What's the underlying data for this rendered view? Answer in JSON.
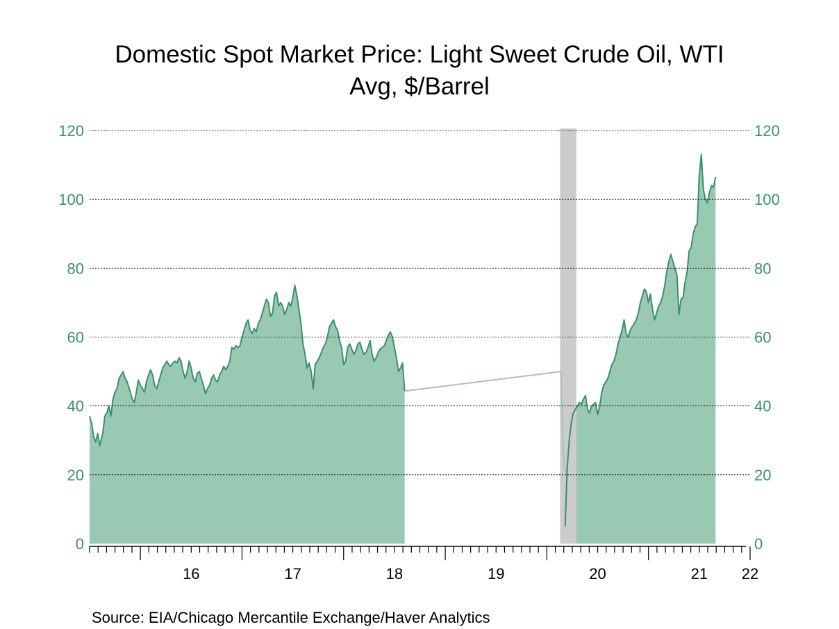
{
  "colors": {
    "fill": "#9ac9b3",
    "line": "#3a9068",
    "axis_text": "#3a9068",
    "recession_band": "#cccccc",
    "recession_line": "#a9c2b7",
    "grid": "#000000"
  },
  "chart_data": {
    "type": "area",
    "title": "Domestic Spot Market Price: Light Sweet Crude Oil, WTI",
    "subtitle": "Avg, $/Barrel",
    "source": "Source:  EIA/Chicago Mercantile Exchange/Haver Analytics",
    "xlabel": "",
    "ylabel": "",
    "x_tick_labels": [
      "16",
      "17",
      "18",
      "19",
      "20",
      "21",
      "22"
    ],
    "x_tick_years": [
      2016,
      2017,
      2018,
      2019,
      2020,
      2021,
      2022
    ],
    "xlim": [
      2015.5,
      2022.0
    ],
    "ylim": [
      0,
      120
    ],
    "y_ticks": [
      0,
      20,
      40,
      60,
      80,
      100,
      120
    ],
    "grid": "horizontal dotted",
    "y_axis": "both sides",
    "recession_shading": {
      "start": 2020.13,
      "end": 2020.29
    },
    "series": [
      {
        "points": [
          [
            2015.5,
            37
          ],
          [
            2015.52,
            35
          ],
          [
            2015.54,
            31
          ],
          [
            2015.56,
            29.5
          ],
          [
            2015.58,
            32
          ],
          [
            2015.6,
            28.5
          ],
          [
            2015.63,
            32
          ],
          [
            2015.65,
            37
          ],
          [
            2015.67,
            38
          ],
          [
            2015.69,
            40
          ],
          [
            2015.71,
            37
          ],
          [
            2015.73,
            42
          ],
          [
            2015.75,
            44
          ],
          [
            2015.77,
            45
          ],
          [
            2015.79,
            48
          ],
          [
            2015.81,
            49
          ],
          [
            2015.83,
            50
          ],
          [
            2015.85,
            48
          ],
          [
            2015.87,
            47
          ],
          [
            2015.89,
            45
          ],
          [
            2015.92,
            42
          ],
          [
            2015.94,
            41
          ],
          [
            2015.96,
            44
          ],
          [
            2015.98,
            47.5
          ],
          [
            2016.0,
            46
          ],
          [
            2016.02,
            45
          ],
          [
            2016.04,
            44
          ],
          [
            2016.06,
            47
          ],
          [
            2016.08,
            49
          ],
          [
            2016.1,
            50.5
          ],
          [
            2016.12,
            49
          ],
          [
            2016.14,
            46
          ],
          [
            2016.16,
            45
          ],
          [
            2016.18,
            47
          ],
          [
            2016.2,
            49
          ],
          [
            2016.22,
            51
          ],
          [
            2016.24,
            52
          ],
          [
            2016.26,
            53
          ],
          [
            2016.28,
            52
          ],
          [
            2016.3,
            51.5
          ],
          [
            2016.32,
            52.5
          ],
          [
            2016.34,
            53
          ],
          [
            2016.36,
            52.5
          ],
          [
            2016.38,
            54
          ],
          [
            2016.4,
            53
          ],
          [
            2016.42,
            50
          ],
          [
            2016.44,
            48
          ],
          [
            2016.46,
            50
          ],
          [
            2016.48,
            53
          ],
          [
            2016.5,
            51
          ],
          [
            2016.52,
            48
          ],
          [
            2016.54,
            47
          ],
          [
            2016.56,
            49.5
          ],
          [
            2016.58,
            50
          ],
          [
            2016.6,
            48
          ],
          [
            2016.62,
            46
          ],
          [
            2016.64,
            43.5
          ],
          [
            2016.66,
            45
          ],
          [
            2016.68,
            46
          ],
          [
            2016.7,
            48
          ],
          [
            2016.72,
            49
          ],
          [
            2016.74,
            47.5
          ],
          [
            2016.76,
            47
          ],
          [
            2016.78,
            49
          ],
          [
            2016.8,
            50
          ],
          [
            2016.82,
            51.5
          ],
          [
            2016.84,
            50.5
          ],
          [
            2016.86,
            51.5
          ],
          [
            2016.88,
            53
          ],
          [
            2016.9,
            57
          ],
          [
            2016.92,
            56.5
          ],
          [
            2016.94,
            57.5
          ],
          [
            2016.96,
            57
          ],
          [
            2016.98,
            57.5
          ],
          [
            2017.0,
            60
          ],
          [
            2017.02,
            62
          ],
          [
            2017.04,
            64
          ],
          [
            2017.06,
            65
          ],
          [
            2017.08,
            62
          ],
          [
            2017.1,
            61
          ],
          [
            2017.12,
            62.5
          ],
          [
            2017.14,
            61.5
          ],
          [
            2017.16,
            64
          ],
          [
            2017.18,
            65
          ],
          [
            2017.2,
            67
          ],
          [
            2017.22,
            69
          ],
          [
            2017.24,
            71
          ],
          [
            2017.26,
            70
          ],
          [
            2017.28,
            66
          ],
          [
            2017.3,
            67
          ],
          [
            2017.32,
            72
          ],
          [
            2017.34,
            73
          ],
          [
            2017.36,
            69
          ],
          [
            2017.38,
            70
          ],
          [
            2017.4,
            69
          ],
          [
            2017.42,
            66.5
          ],
          [
            2017.44,
            68
          ],
          [
            2017.46,
            70
          ],
          [
            2017.48,
            69
          ],
          [
            2017.5,
            71.5
          ],
          [
            2017.52,
            75
          ],
          [
            2017.54,
            72
          ],
          [
            2017.56,
            68
          ],
          [
            2017.58,
            64
          ],
          [
            2017.6,
            58
          ],
          [
            2017.62,
            55
          ],
          [
            2017.64,
            51
          ],
          [
            2017.66,
            52.5
          ],
          [
            2017.68,
            50
          ],
          [
            2017.7,
            45
          ],
          [
            2017.72,
            52
          ],
          [
            2017.74,
            53
          ],
          [
            2017.76,
            54
          ],
          [
            2017.78,
            55.5
          ],
          [
            2017.8,
            57
          ],
          [
            2017.82,
            58
          ],
          [
            2017.84,
            60
          ],
          [
            2017.86,
            63
          ],
          [
            2017.88,
            64
          ],
          [
            2017.9,
            65
          ],
          [
            2017.92,
            63
          ],
          [
            2017.94,
            62
          ],
          [
            2017.96,
            59
          ],
          [
            2017.98,
            57
          ],
          [
            2018.0,
            52
          ],
          [
            2018.02,
            53
          ],
          [
            2018.04,
            57
          ],
          [
            2018.06,
            58
          ],
          [
            2018.08,
            56.5
          ],
          [
            2018.1,
            55
          ],
          [
            2018.12,
            56
          ],
          [
            2018.14,
            58
          ],
          [
            2018.16,
            58.5
          ],
          [
            2018.18,
            56.5
          ],
          [
            2018.2,
            55
          ],
          [
            2018.22,
            55.5
          ],
          [
            2018.24,
            57
          ],
          [
            2018.26,
            59
          ],
          [
            2018.28,
            55
          ],
          [
            2018.3,
            53
          ],
          [
            2018.32,
            54
          ],
          [
            2018.34,
            55.5
          ],
          [
            2018.36,
            56.5
          ],
          [
            2018.38,
            57
          ],
          [
            2018.4,
            57.5
          ],
          [
            2018.42,
            59
          ],
          [
            2018.44,
            60.5
          ],
          [
            2018.46,
            61.5
          ],
          [
            2018.48,
            60
          ],
          [
            2018.5,
            57
          ],
          [
            2018.52,
            54
          ],
          [
            2018.54,
            50
          ],
          [
            2018.56,
            51
          ],
          [
            2018.58,
            52.5
          ],
          [
            2018.6,
            44.3
          ]
        ]
      },
      {
        "points": [
          [
            2020.18,
            5
          ],
          [
            2020.2,
            22
          ],
          [
            2020.22,
            30
          ],
          [
            2020.24,
            35
          ],
          [
            2020.26,
            38
          ],
          [
            2020.28,
            39
          ],
          [
            2020.3,
            40
          ],
          [
            2020.32,
            41
          ],
          [
            2020.34,
            40.5
          ],
          [
            2020.36,
            42
          ],
          [
            2020.38,
            43
          ],
          [
            2020.4,
            39
          ],
          [
            2020.42,
            38
          ],
          [
            2020.44,
            40
          ],
          [
            2020.46,
            40.5
          ],
          [
            2020.48,
            41
          ],
          [
            2020.5,
            37.5
          ],
          [
            2020.52,
            40
          ],
          [
            2020.54,
            44
          ],
          [
            2020.56,
            46
          ],
          [
            2020.58,
            47
          ],
          [
            2020.6,
            48
          ],
          [
            2020.62,
            50
          ],
          [
            2020.64,
            52
          ],
          [
            2020.66,
            53
          ],
          [
            2020.68,
            55
          ],
          [
            2020.7,
            58
          ],
          [
            2020.72,
            60
          ],
          [
            2020.74,
            62
          ],
          [
            2020.76,
            65
          ],
          [
            2020.78,
            61
          ],
          [
            2020.8,
            60
          ],
          [
            2020.82,
            62
          ],
          [
            2020.84,
            63
          ],
          [
            2020.86,
            64
          ],
          [
            2020.88,
            65
          ],
          [
            2020.9,
            67
          ],
          [
            2020.92,
            70
          ],
          [
            2020.94,
            72
          ],
          [
            2020.96,
            74
          ],
          [
            2020.98,
            73
          ],
          [
            2021.0,
            70
          ],
          [
            2021.02,
            72.5
          ],
          [
            2021.04,
            68
          ],
          [
            2021.06,
            65
          ],
          [
            2021.08,
            67
          ],
          [
            2021.1,
            69
          ],
          [
            2021.12,
            70
          ],
          [
            2021.14,
            72
          ],
          [
            2021.16,
            75
          ],
          [
            2021.18,
            79
          ],
          [
            2021.2,
            82
          ],
          [
            2021.22,
            84
          ],
          [
            2021.24,
            82
          ],
          [
            2021.26,
            80
          ],
          [
            2021.28,
            78
          ],
          [
            2021.3,
            66.5
          ],
          [
            2021.32,
            71
          ],
          [
            2021.34,
            71.5
          ],
          [
            2021.36,
            76
          ],
          [
            2021.38,
            79
          ],
          [
            2021.4,
            85
          ],
          [
            2021.42,
            86
          ],
          [
            2021.44,
            90
          ],
          [
            2021.46,
            92
          ],
          [
            2021.48,
            93
          ],
          [
            2021.5,
            107
          ],
          [
            2021.52,
            113
          ],
          [
            2021.54,
            103
          ],
          [
            2021.56,
            100
          ],
          [
            2021.58,
            99
          ],
          [
            2021.6,
            102
          ],
          [
            2021.62,
            104
          ],
          [
            2021.64,
            103.5
          ],
          [
            2021.66,
            106.5
          ]
        ]
      }
    ]
  }
}
